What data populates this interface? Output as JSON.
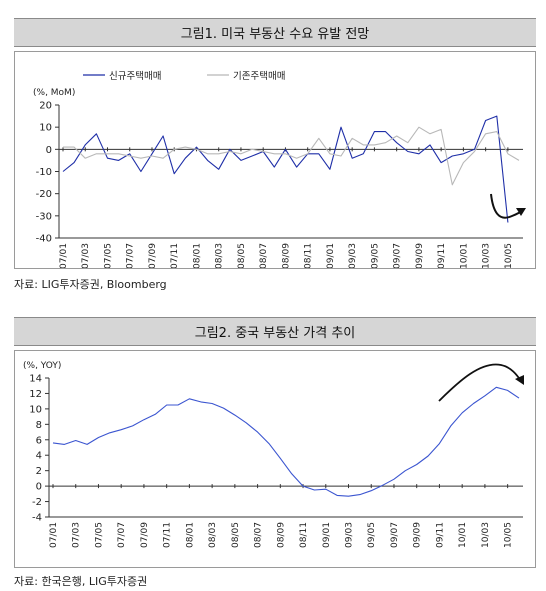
{
  "charts": [
    {
      "title": "그림1. 미국 부동산 수요 유발 전망",
      "source": "자료: LIG투자증권, Bloomberg"
    },
    {
      "title": "그림2. 중국 부동산 가격 추이",
      "source": "자료: 한국은행, LIG투자증권"
    }
  ],
  "chart_data": [
    {
      "type": "line",
      "ylabel": "(%, MoM)",
      "ylim": [
        -40,
        20
      ],
      "yticks": [
        20,
        10,
        0,
        -10,
        -20,
        -30,
        -40
      ],
      "xtick_labels": [
        "07/01",
        "07/03",
        "07/05",
        "07/07",
        "07/09",
        "07/11",
        "08/01",
        "08/03",
        "08/05",
        "08/07",
        "08/09",
        "08/11",
        "09/01",
        "09/03",
        "09/05",
        "09/07",
        "09/09",
        "09/11",
        "10/01",
        "10/03",
        "10/05"
      ],
      "x": [
        "07/01",
        "07/02",
        "07/03",
        "07/04",
        "07/05",
        "07/06",
        "07/07",
        "07/08",
        "07/09",
        "07/10",
        "07/11",
        "07/12",
        "08/01",
        "08/02",
        "08/03",
        "08/04",
        "08/05",
        "08/06",
        "08/07",
        "08/08",
        "08/09",
        "08/10",
        "08/11",
        "08/12",
        "09/01",
        "09/02",
        "09/03",
        "09/04",
        "09/05",
        "09/06",
        "09/07",
        "09/08",
        "09/09",
        "09/10",
        "09/11",
        "09/12",
        "10/01",
        "10/02",
        "10/03",
        "10/04",
        "10/05",
        "10/06"
      ],
      "legend_position": "top",
      "series": [
        {
          "name": "신규주택매매",
          "color": "#1f2fa8",
          "values": [
            -10,
            -6,
            2,
            7,
            -4,
            -5,
            -2,
            -10,
            -2,
            6,
            -11,
            -4,
            1,
            -5,
            -9,
            0,
            -5,
            -3,
            -1,
            -8,
            0,
            -8,
            -2,
            -2,
            -9,
            10,
            -4,
            -2,
            8,
            8,
            3,
            -1,
            -2,
            2,
            -6,
            -3,
            -2,
            0,
            13,
            15,
            -33,
            null
          ]
        },
        {
          "name": "기존주택매매",
          "color": "#b8b8b8",
          "values": [
            1,
            1,
            -4,
            -2,
            -2,
            -2,
            -3,
            -4,
            -3,
            -4,
            0,
            1,
            0,
            -2,
            -2,
            -1,
            -2,
            0,
            -1,
            -2,
            -2,
            -4,
            -2,
            5,
            -2,
            -3,
            5,
            2,
            2,
            3,
            6,
            3,
            10,
            7,
            9,
            -16,
            -6,
            -1,
            7,
            8,
            -2,
            -5
          ]
        }
      ],
      "annotation": "curved-arrow-down-then-up"
    },
    {
      "type": "line",
      "ylabel": "(%, YOY)",
      "ylim": [
        -4,
        14
      ],
      "yticks": [
        14,
        12,
        10,
        8,
        6,
        4,
        2,
        0,
        -2,
        -4
      ],
      "xtick_labels": [
        "07/01",
        "07/03",
        "07/05",
        "07/07",
        "07/09",
        "07/11",
        "08/01",
        "08/03",
        "08/05",
        "08/07",
        "08/09",
        "08/11",
        "09/01",
        "09/03",
        "09/05",
        "09/07",
        "09/09",
        "09/11",
        "10/01",
        "10/03",
        "10/05"
      ],
      "x": [
        "07/01",
        "07/02",
        "07/03",
        "07/04",
        "07/05",
        "07/06",
        "07/07",
        "07/08",
        "07/09",
        "07/10",
        "07/11",
        "07/12",
        "08/01",
        "08/02",
        "08/03",
        "08/04",
        "08/05",
        "08/06",
        "08/07",
        "08/08",
        "08/09",
        "08/10",
        "08/11",
        "08/12",
        "09/01",
        "09/02",
        "09/03",
        "09/04",
        "09/05",
        "09/06",
        "09/07",
        "09/08",
        "09/09",
        "09/10",
        "09/11",
        "09/12",
        "10/01",
        "10/02",
        "10/03",
        "10/04",
        "10/05",
        "10/06"
      ],
      "series": [
        {
          "color": "#3b55d0",
          "values": [
            5.6,
            5.4,
            5.9,
            5.4,
            6.3,
            6.9,
            7.3,
            7.8,
            8.6,
            9.3,
            10.5,
            10.5,
            11.3,
            10.9,
            10.7,
            10.1,
            9.2,
            8.2,
            7.0,
            5.5,
            3.6,
            1.6,
            0.0,
            -0.5,
            -0.4,
            -1.2,
            -1.3,
            -1.1,
            -0.6,
            0.1,
            0.9,
            2.0,
            2.8,
            3.9,
            5.5,
            7.8,
            9.5,
            10.7,
            11.7,
            12.8,
            12.4,
            11.4
          ]
        }
      ],
      "annotation": "curved-arrow-up-then-down"
    }
  ]
}
